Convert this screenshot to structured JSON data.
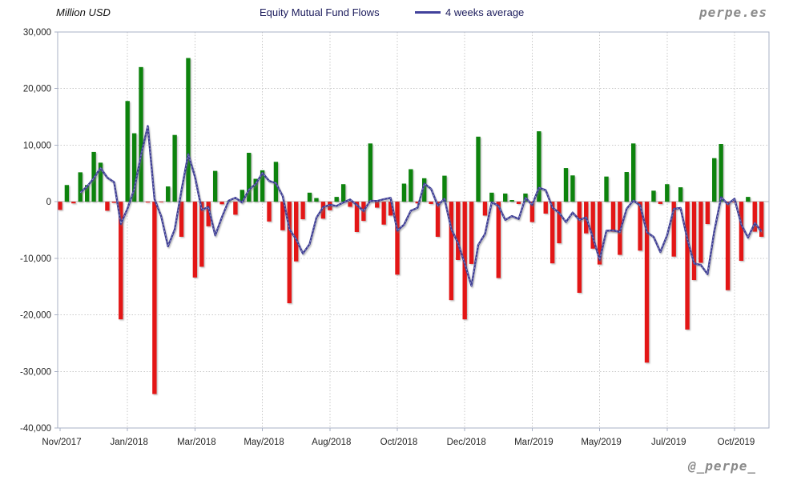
{
  "header": {
    "y_axis_title": "Million USD",
    "title": "Equity Mutual Fund Flows",
    "legend_label": "4 weeks average",
    "brand": "perpe.es",
    "handle": "@_perpe_"
  },
  "colors": {
    "positive_bar": "#0b830b",
    "negative_bar": "#e31212",
    "average_line": "#3c3c92",
    "average_line_highlight": "#9a9ad0",
    "grid": "#c9c9c9",
    "plot_border": "#a9b1c6",
    "zero_line": "#b0b0b0",
    "tick_text": "#262626",
    "title_text": "#1b1b5c",
    "brand_text": "#8a8a8a"
  },
  "chart_data": {
    "type": "bar",
    "title": "Equity Mutual Fund Flows",
    "units": "Million USD",
    "frequency": "weekly",
    "period_start": "Nov/2017",
    "period_end": "Oct/2019",
    "ylim": [
      -40000,
      30000
    ],
    "ytick_step": 10000,
    "grid": "dotted",
    "legend_position": "top",
    "x_tick_labels": [
      "Nov/2017",
      "Jan/2018",
      "Mar/2018",
      "May/2018",
      "Aug/2018",
      "Oct/2018",
      "Dec/2018",
      "Mar/2019",
      "May/2019",
      "Jul/2019",
      "Oct/2019"
    ],
    "x_tick_weeks": [
      0,
      10,
      20,
      30,
      40,
      50,
      60,
      70,
      80,
      90,
      100
    ],
    "series": [
      {
        "name": "Weekly equity mutual fund flows (Million USD)",
        "type": "bar",
        "values": [
          -1450,
          2950,
          -300,
          5200,
          2950,
          8800,
          6900,
          -1600,
          -200,
          -20800,
          17800,
          12100,
          23800,
          -150,
          -34000,
          -100,
          2700,
          11800,
          -6200,
          25400,
          -13400,
          -11500,
          -4350,
          5450,
          -450,
          100,
          -2300,
          2100,
          8650,
          4050,
          5550,
          -3500,
          7050,
          -5050,
          -17950,
          -10550,
          -3100,
          1600,
          650,
          -3000,
          -1500,
          850,
          3100,
          -900,
          -5350,
          -3400,
          10300,
          -1050,
          -4050,
          -2450,
          -12900,
          3200,
          5750,
          -300,
          4150,
          -400,
          -6200,
          4600,
          -17400,
          -10300,
          -20800,
          -11000,
          11500,
          -2450,
          1600,
          -13500,
          1450,
          300,
          -400,
          1450,
          -3600,
          12450,
          -2100,
          -10900,
          -7350,
          5950,
          4650,
          -16100,
          -5600,
          -8300,
          -11100,
          4450,
          -5300,
          -9400,
          5250,
          10300,
          -8650,
          -28450,
          1950,
          -400,
          3100,
          -9700,
          2550,
          -22600,
          -13850,
          -10800,
          -3950,
          7700,
          10200,
          -15650,
          -150,
          -10450,
          850,
          -5300,
          -6200
        ]
      },
      {
        "name": "4 weeks average",
        "type": "line",
        "derived": "trailing 4-week mean of the weekly bar values"
      }
    ]
  }
}
